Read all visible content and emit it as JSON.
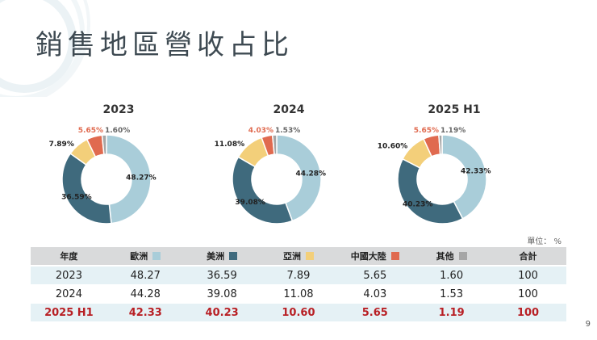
{
  "title": "銷售地區營收占比",
  "unit_note": "單位： %",
  "page_number": "9",
  "colors": {
    "europe": "#a9cdd9",
    "americas": "#3f6a7d",
    "asia": "#f3cf7a",
    "china": "#e06a4f",
    "other": "#a6a6a6",
    "highlight": "#b81f24"
  },
  "table": {
    "headers": [
      "年度",
      "歐洲",
      "美洲",
      "亞洲",
      "中國大陸",
      "其他",
      "合計"
    ],
    "rows": [
      [
        "2023",
        "48.27",
        "36.59",
        "7.89",
        "5.65",
        "1.60",
        "100"
      ],
      [
        "2024",
        "44.28",
        "39.08",
        "11.08",
        "4.03",
        "1.53",
        "100"
      ],
      [
        "2025 H1",
        "42.33",
        "40.23",
        "10.60",
        "5.65",
        "1.19",
        "100"
      ]
    ]
  },
  "chart_data": [
    {
      "type": "pie",
      "title": "2023",
      "categories": [
        "歐洲",
        "美洲",
        "亞洲",
        "中國大陸",
        "其他"
      ],
      "values": [
        48.27,
        36.59,
        7.89,
        5.65,
        1.6
      ],
      "labels": [
        "48.27%",
        "36.59%",
        "7.89%",
        "5.65%",
        "1.60%"
      ]
    },
    {
      "type": "pie",
      "title": "2024",
      "categories": [
        "歐洲",
        "美洲",
        "亞洲",
        "中國大陸",
        "其他"
      ],
      "values": [
        44.28,
        39.08,
        11.08,
        4.03,
        1.53
      ],
      "labels": [
        "44.28%",
        "39.08%",
        "11.08%",
        "4.03%",
        "1.53%"
      ]
    },
    {
      "type": "pie",
      "title": "2025 H1",
      "categories": [
        "歐洲",
        "美洲",
        "亞洲",
        "中國大陸",
        "其他"
      ],
      "values": [
        42.33,
        40.23,
        10.6,
        5.65,
        1.19
      ],
      "labels": [
        "42.33%",
        "40.23%",
        "10.60%",
        "5.65%",
        "1.19%"
      ]
    }
  ]
}
